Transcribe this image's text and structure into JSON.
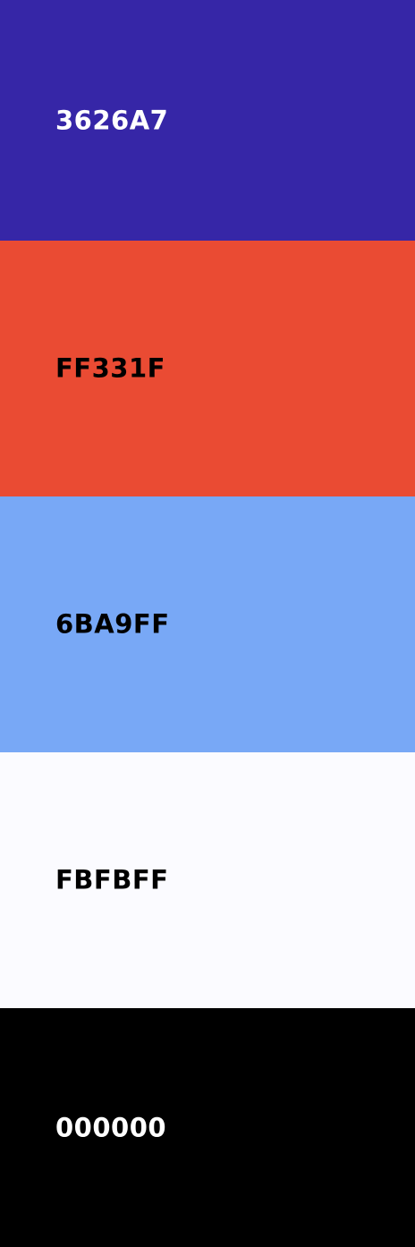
{
  "swatches": [
    {
      "hex": "3626A7",
      "color": "#3626A7",
      "text_color": "#FFFFFF"
    },
    {
      "hex": "FF331F",
      "color": "#EA4B33",
      "text_color": "#000000"
    },
    {
      "hex": "6BA9FF",
      "color": "#78A8F6",
      "text_color": "#000000"
    },
    {
      "hex": "FBFBFF",
      "color": "#FBFBFF",
      "text_color": "#000000"
    },
    {
      "hex": "000000",
      "color": "#000000",
      "text_color": "#FFFFFF"
    }
  ]
}
